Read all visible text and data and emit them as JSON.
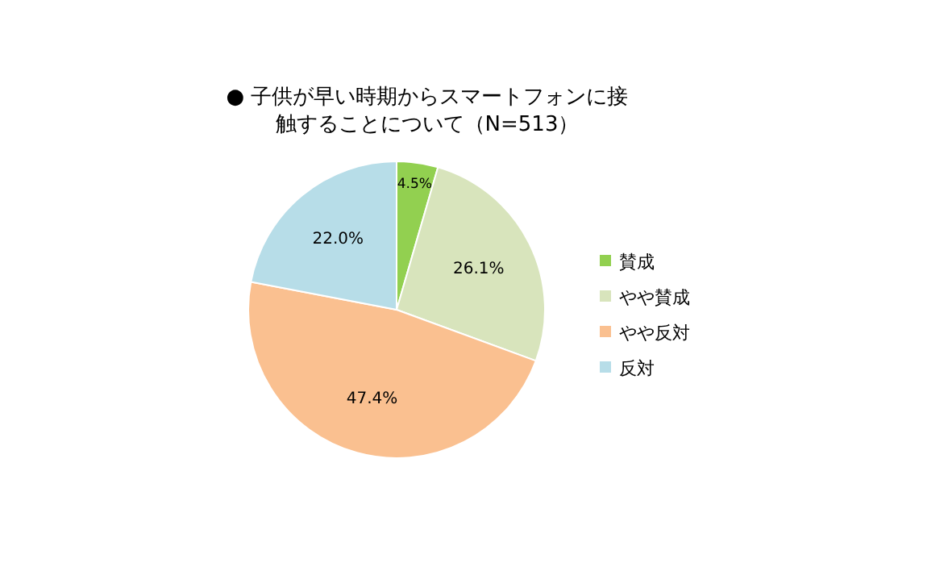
{
  "chart_data": {
    "type": "pie",
    "title": "●  子供が早い時期からスマートフォンに接触することについて（N=513）",
    "categories": [
      "賛成",
      "やや賛成",
      "やや反対",
      "反対"
    ],
    "values": [
      4.5,
      26.1,
      47.4,
      22.0
    ],
    "value_labels": [
      "4.5%",
      "26.1%",
      "47.4%",
      "22.0%"
    ],
    "colors": [
      "#92d050",
      "#d8e4bc",
      "#fac090",
      "#b7dde8"
    ],
    "legend": "right"
  }
}
